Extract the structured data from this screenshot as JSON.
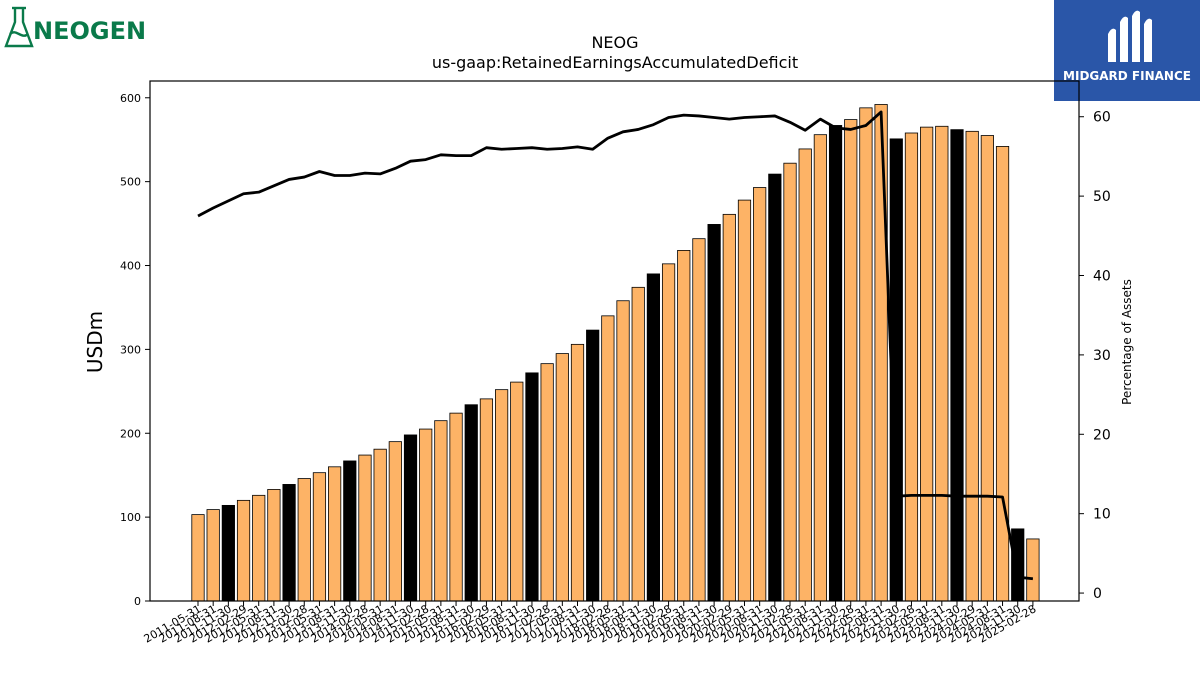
{
  "logos": {
    "left_text": "NEOGEN",
    "right_text": "MIDGARD FINANCE",
    "left_color": "#0a7a4a",
    "right_bg": "#2a56a8"
  },
  "chart_data": {
    "type": "bar",
    "title": "NEOG",
    "subtitle": "us-gaap:RetainedEarningsAccumulatedDeficit",
    "ylabel": "USDm",
    "y2label": "Percentage of Assets",
    "ylim": [
      0,
      620
    ],
    "y2lim": [
      -1,
      64.5
    ],
    "yticks": [
      0,
      100,
      200,
      300,
      400,
      500,
      600
    ],
    "y2ticks": [
      0,
      10,
      20,
      30,
      40,
      50,
      60
    ],
    "bar_color": "#fdb366",
    "highlight_color": "#000000",
    "line_color": "#000000",
    "grid": false,
    "categories": [
      "2011-05-31",
      "2011-08-31",
      "2011-11-30",
      "2012-02-29",
      "2012-05-31",
      "2012-08-31",
      "2012-11-30",
      "2013-02-28",
      "2013-05-31",
      "2013-08-31",
      "2013-11-30",
      "2014-02-28",
      "2014-05-31",
      "2014-08-31",
      "2014-11-30",
      "2015-02-28",
      "2015-05-31",
      "2015-08-31",
      "2015-11-30",
      "2016-02-29",
      "2016-05-31",
      "2016-08-31",
      "2016-11-30",
      "2017-02-28",
      "2017-05-31",
      "2017-08-31",
      "2017-11-30",
      "2018-02-28",
      "2018-05-31",
      "2018-08-31",
      "2018-11-30",
      "2019-02-28",
      "2019-05-31",
      "2019-08-31",
      "2019-11-30",
      "2020-02-29",
      "2020-05-31",
      "2020-08-31",
      "2020-11-30",
      "2021-02-28",
      "2021-05-31",
      "2021-08-31",
      "2021-11-30",
      "2022-02-28",
      "2022-05-31",
      "2022-08-31",
      "2022-11-30",
      "2023-02-28",
      "2023-05-31",
      "2023-08-31",
      "2023-11-30",
      "2024-02-29",
      "2024-05-31",
      "2024-08-31",
      "2024-11-30",
      "2025-02-28"
    ],
    "xtick_labels": [
      "2011-05-31",
      "2011-08-31",
      "2011-11-30",
      "2012-02-29",
      "2012-05-31",
      "2012-08-31",
      "2012-11-30",
      "2013-02-28",
      "2013-05-31",
      "2013-08-31",
      "2013-11-30",
      "2014-02-28",
      "2014-05-31",
      "2014-08-31",
      "2014-11-30",
      "2015-02-28",
      "2015-05-31",
      "2015-08-31",
      "2015-11-30",
      "2016-02-29",
      "2016-05-31",
      "2016-08-31",
      "2016-11-30",
      "2017-02-28",
      "2017-05-31",
      "2017-08-31",
      "2017-11-30",
      "2018-02-28",
      "2018-05-31",
      "2018-08-31",
      "2018-11-30",
      "2019-02-28",
      "2019-05-31",
      "2019-08-31",
      "2019-11-30",
      "2020-02-29",
      "2020-05-31",
      "2020-08-31",
      "2020-11-30",
      "2021-02-28",
      "2021-05-31",
      "2021-08-31",
      "2021-11-30",
      "2022-02-28",
      "2022-05-31",
      "2022-08-31",
      "2022-11-30",
      "2023-02-28",
      "2023-05-31",
      "2023-08-31",
      "2023-11-30",
      "2024-02-29",
      "2024-05-31",
      "2024-08-31",
      "2024-11-30",
      "2025-02-28"
    ],
    "values": [
      103,
      109,
      114,
      120,
      126,
      133,
      139,
      146,
      153,
      160,
      167,
      174,
      181,
      190,
      198,
      205,
      215,
      224,
      234,
      241,
      252,
      261,
      272,
      283,
      295,
      306,
      323,
      340,
      358,
      374,
      390,
      402,
      418,
      432,
      449,
      461,
      478,
      493,
      509,
      522,
      539,
      556,
      567,
      574,
      588,
      592,
      551,
      558,
      565,
      566,
      562,
      560,
      555,
      542,
      86,
      74
    ],
    "highlight": [
      false,
      false,
      true,
      false,
      false,
      false,
      true,
      false,
      false,
      false,
      true,
      false,
      false,
      false,
      true,
      false,
      false,
      false,
      true,
      false,
      false,
      false,
      true,
      false,
      false,
      false,
      true,
      false,
      false,
      false,
      true,
      false,
      false,
      false,
      true,
      false,
      false,
      false,
      true,
      false,
      false,
      false,
      true,
      false,
      false,
      false,
      true,
      false,
      false,
      false,
      true,
      false,
      false,
      false,
      true,
      false
    ],
    "line_series": {
      "name": "Percentage of Assets",
      "values": [
        47.5,
        48.5,
        49.4,
        50.3,
        50.5,
        51.3,
        52.1,
        52.4,
        53.1,
        52.6,
        52.6,
        52.9,
        52.8,
        53.5,
        54.4,
        54.6,
        55.2,
        55.1,
        55.1,
        56.1,
        55.9,
        56.0,
        56.1,
        55.9,
        56.0,
        56.2,
        55.9,
        57.3,
        58.1,
        58.4,
        59.0,
        59.9,
        60.2,
        60.1,
        59.9,
        59.7,
        59.9,
        60.0,
        60.1,
        59.3,
        58.3,
        59.7,
        58.6,
        58.4,
        58.9,
        60.6,
        12.2,
        12.3,
        12.3,
        12.3,
        12.2,
        12.2,
        12.2,
        12.1,
        2.0,
        1.8
      ]
    }
  }
}
